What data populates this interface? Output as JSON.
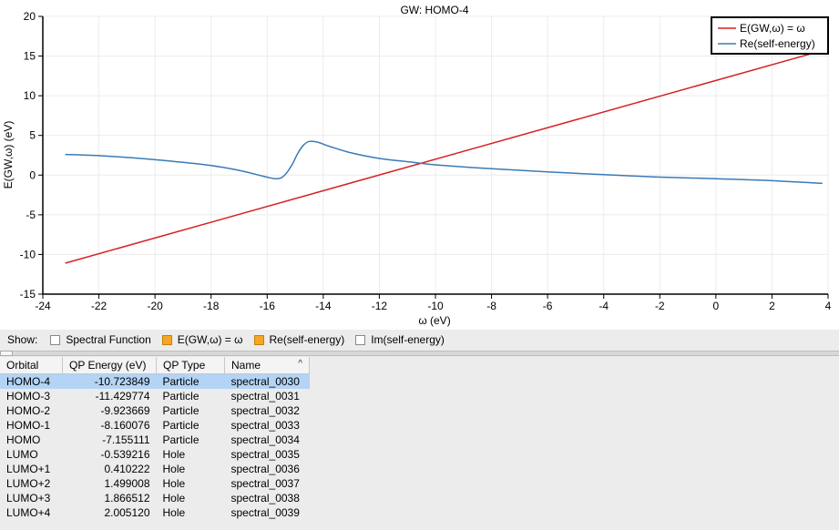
{
  "chart_data": {
    "type": "line",
    "title": "GW: HOMO-4",
    "xlabel": "ω (eV)",
    "ylabel": "E(GW,ω) (eV)",
    "xlim": [
      -24,
      4
    ],
    "ylim": [
      -15,
      20
    ],
    "x_ticks": [
      -24,
      -22,
      -20,
      -18,
      -16,
      -14,
      -12,
      -10,
      -8,
      -6,
      -4,
      -2,
      0,
      2,
      4
    ],
    "y_ticks": [
      -15,
      -10,
      -5,
      0,
      5,
      10,
      15,
      20
    ],
    "x_tick_labels": [
      "-24",
      "-22",
      "-20",
      "-18",
      "-16",
      "-14",
      "-12",
      "-10",
      "-8",
      "-6",
      "-4",
      "-2",
      "0",
      "2",
      "4"
    ],
    "y_tick_labels": [
      "-15",
      "-10",
      "-5",
      "0",
      "5",
      "10",
      "15",
      "20"
    ],
    "grid": true,
    "legend_position": "top-right",
    "series": [
      {
        "name": "E(GW,ω) = ω",
        "color": "#d62020",
        "points": [
          [
            -23.2,
            -11.1
          ],
          [
            3.8,
            15.7
          ]
        ]
      },
      {
        "name": "Re(self-energy)",
        "color": "#3a7ab8",
        "points": [
          [
            -23.2,
            2.6
          ],
          [
            -22.0,
            2.45
          ],
          [
            -20.5,
            2.1
          ],
          [
            -19.0,
            1.6
          ],
          [
            -18.0,
            1.2
          ],
          [
            -17.0,
            0.6
          ],
          [
            -16.3,
            0.0
          ],
          [
            -15.9,
            -0.35
          ],
          [
            -15.7,
            -0.45
          ],
          [
            -15.5,
            -0.35
          ],
          [
            -15.3,
            0.3
          ],
          [
            -15.1,
            1.4
          ],
          [
            -14.9,
            2.8
          ],
          [
            -14.7,
            3.8
          ],
          [
            -14.5,
            4.25
          ],
          [
            -14.2,
            4.15
          ],
          [
            -13.8,
            3.65
          ],
          [
            -13.0,
            2.8
          ],
          [
            -12.0,
            2.1
          ],
          [
            -11.0,
            1.7
          ],
          [
            -10.0,
            1.3
          ],
          [
            -8.0,
            0.8
          ],
          [
            -6.0,
            0.4
          ],
          [
            -4.0,
            0.05
          ],
          [
            -2.0,
            -0.25
          ],
          [
            0.0,
            -0.45
          ],
          [
            2.0,
            -0.7
          ],
          [
            3.8,
            -1.05
          ]
        ]
      }
    ]
  },
  "show_bar": {
    "label": "Show:",
    "options": [
      {
        "label": "Spectral Function",
        "checked": false
      },
      {
        "label": "E(GW,ω) = ω",
        "checked": true
      },
      {
        "label": "Re(self-energy)",
        "checked": true
      },
      {
        "label": "Im(self-energy)",
        "checked": false
      }
    ]
  },
  "table": {
    "columns": [
      "Orbital",
      "QP Energy (eV)",
      "QP Type",
      "Name"
    ],
    "sort_indicator": "^",
    "rows": [
      {
        "orbital": "HOMO-4",
        "energy": "-10.723849",
        "type": "Particle",
        "name": "spectral_0030"
      },
      {
        "orbital": "HOMO-3",
        "energy": "-11.429774",
        "type": "Particle",
        "name": "spectral_0031"
      },
      {
        "orbital": "HOMO-2",
        "energy": "-9.923669",
        "type": "Particle",
        "name": "spectral_0032"
      },
      {
        "orbital": "HOMO-1",
        "energy": "-8.160076",
        "type": "Particle",
        "name": "spectral_0033"
      },
      {
        "orbital": "HOMO",
        "energy": "-7.155111",
        "type": "Particle",
        "name": "spectral_0034"
      },
      {
        "orbital": "LUMO",
        "energy": "-0.539216",
        "type": "Hole",
        "name": "spectral_0035"
      },
      {
        "orbital": "LUMO+1",
        "energy": "0.410222",
        "type": "Hole",
        "name": "spectral_0036"
      },
      {
        "orbital": "LUMO+2",
        "energy": "1.499008",
        "type": "Hole",
        "name": "spectral_0037"
      },
      {
        "orbital": "LUMO+3",
        "energy": "1.866512",
        "type": "Hole",
        "name": "spectral_0038"
      },
      {
        "orbital": "LUMO+4",
        "energy": "2.005120",
        "type": "Hole",
        "name": "spectral_0039"
      }
    ],
    "selected_row": 0
  }
}
